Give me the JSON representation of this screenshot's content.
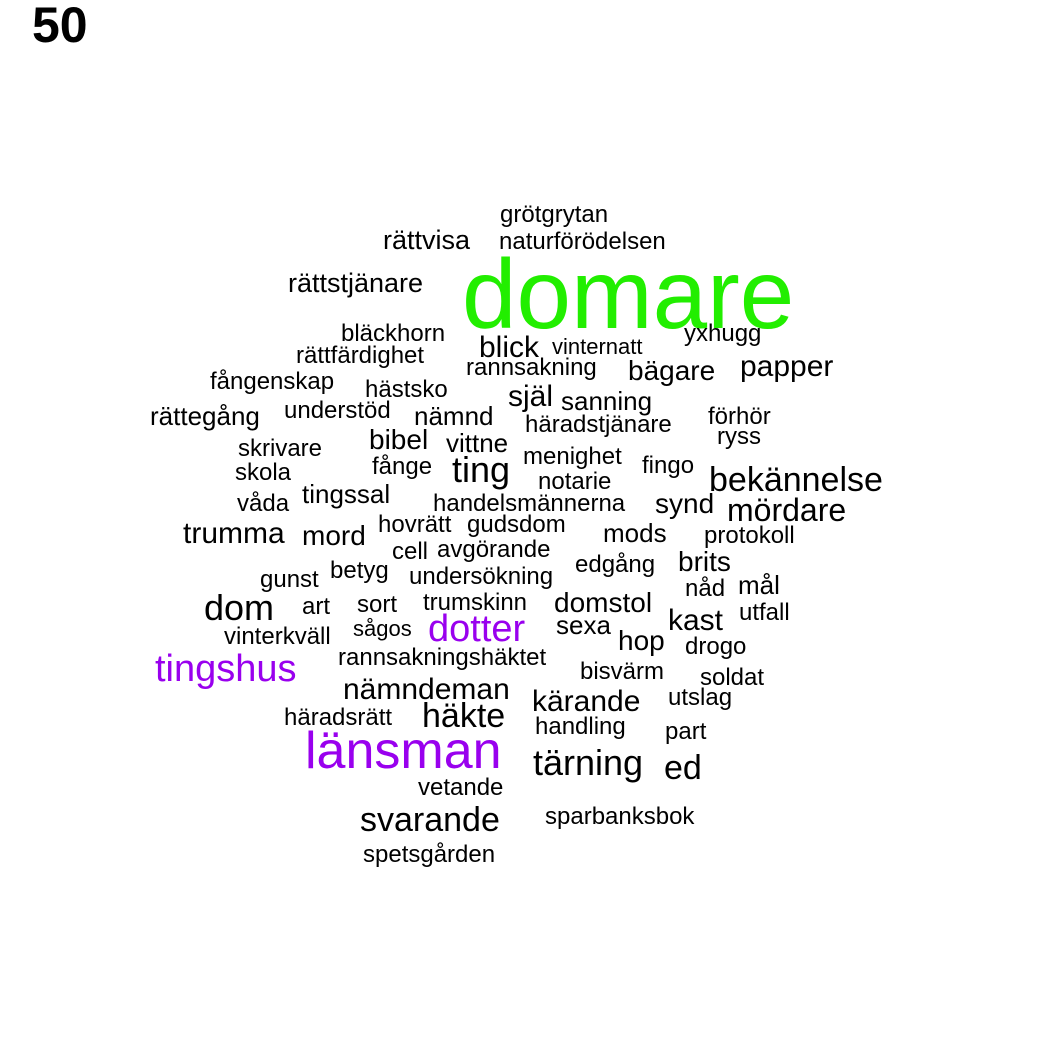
{
  "label": "50",
  "colors": {
    "highlight_green": "#22ee00",
    "highlight_purple": "#9900ee",
    "default": "#000000"
  },
  "words": [
    {
      "text": "domare",
      "color": "highlight_green",
      "tier": 1
    },
    {
      "text": "länsman",
      "color": "highlight_purple",
      "tier": 2
    },
    {
      "text": "tingshus",
      "color": "highlight_purple",
      "tier": 3
    },
    {
      "text": "dotter",
      "color": "highlight_purple",
      "tier": 3
    },
    {
      "text": "grötgrytan",
      "color": "default",
      "tier": 5
    },
    {
      "text": "rättvisa",
      "color": "default",
      "tier": 5
    },
    {
      "text": "naturförödelsen",
      "color": "default",
      "tier": 5
    },
    {
      "text": "rättstjänare",
      "color": "default",
      "tier": 4
    },
    {
      "text": "bläckhorn",
      "color": "default",
      "tier": 5
    },
    {
      "text": "yxhugg",
      "color": "default",
      "tier": 5
    },
    {
      "text": "blick",
      "color": "default",
      "tier": 4
    },
    {
      "text": "vinternatt",
      "color": "default",
      "tier": 5
    },
    {
      "text": "rättfärdighet",
      "color": "default",
      "tier": 5
    },
    {
      "text": "rannsakning",
      "color": "default",
      "tier": 5
    },
    {
      "text": "bägare",
      "color": "default",
      "tier": 4
    },
    {
      "text": "papper",
      "color": "default",
      "tier": 4
    },
    {
      "text": "fångenskap",
      "color": "default",
      "tier": 5
    },
    {
      "text": "hästsko",
      "color": "default",
      "tier": 5
    },
    {
      "text": "själ",
      "color": "default",
      "tier": 4
    },
    {
      "text": "sanning",
      "color": "default",
      "tier": 5
    },
    {
      "text": "rättegång",
      "color": "default",
      "tier": 4
    },
    {
      "text": "understöd",
      "color": "default",
      "tier": 5
    },
    {
      "text": "nämnd",
      "color": "default",
      "tier": 4
    },
    {
      "text": "häradstjänare",
      "color": "default",
      "tier": 5
    },
    {
      "text": "förhör",
      "color": "default",
      "tier": 5
    },
    {
      "text": "ryss",
      "color": "default",
      "tier": 5
    },
    {
      "text": "skrivare",
      "color": "default",
      "tier": 5
    },
    {
      "text": "bibel",
      "color": "default",
      "tier": 4
    },
    {
      "text": "vittne",
      "color": "default",
      "tier": 4
    },
    {
      "text": "menighet",
      "color": "default",
      "tier": 5
    },
    {
      "text": "skola",
      "color": "default",
      "tier": 5
    },
    {
      "text": "fånge",
      "color": "default",
      "tier": 5
    },
    {
      "text": "ting",
      "color": "default",
      "tier": 3
    },
    {
      "text": "notarie",
      "color": "default",
      "tier": 5
    },
    {
      "text": "fingo",
      "color": "default",
      "tier": 5
    },
    {
      "text": "bekännelse",
      "color": "default",
      "tier": 3
    },
    {
      "text": "våda",
      "color": "default",
      "tier": 5
    },
    {
      "text": "tingssal",
      "color": "default",
      "tier": 4
    },
    {
      "text": "handelsmännerna",
      "color": "default",
      "tier": 5
    },
    {
      "text": "synd",
      "color": "default",
      "tier": 4
    },
    {
      "text": "mördare",
      "color": "default",
      "tier": 3
    },
    {
      "text": "trumma",
      "color": "default",
      "tier": 4
    },
    {
      "text": "mord",
      "color": "default",
      "tier": 4
    },
    {
      "text": "hovrätt",
      "color": "default",
      "tier": 5
    },
    {
      "text": "gudsdom",
      "color": "default",
      "tier": 5
    },
    {
      "text": "mods",
      "color": "default",
      "tier": 4
    },
    {
      "text": "protokoll",
      "color": "default",
      "tier": 5
    },
    {
      "text": "cell",
      "color": "default",
      "tier": 5
    },
    {
      "text": "avgörande",
      "color": "default",
      "tier": 5
    },
    {
      "text": "edgång",
      "color": "default",
      "tier": 5
    },
    {
      "text": "brits",
      "color": "default",
      "tier": 4
    },
    {
      "text": "gunst",
      "color": "default",
      "tier": 5
    },
    {
      "text": "betyg",
      "color": "default",
      "tier": 5
    },
    {
      "text": "undersökning",
      "color": "default",
      "tier": 5
    },
    {
      "text": "nåd",
      "color": "default",
      "tier": 5
    },
    {
      "text": "mål",
      "color": "default",
      "tier": 4
    },
    {
      "text": "dom",
      "color": "default",
      "tier": 3
    },
    {
      "text": "art",
      "color": "default",
      "tier": 5
    },
    {
      "text": "sort",
      "color": "default",
      "tier": 5
    },
    {
      "text": "trumskinn",
      "color": "default",
      "tier": 5
    },
    {
      "text": "domstol",
      "color": "default",
      "tier": 4
    },
    {
      "text": "utfall",
      "color": "default",
      "tier": 5
    },
    {
      "text": "kast",
      "color": "default",
      "tier": 4
    },
    {
      "text": "vinterkväll",
      "color": "default",
      "tier": 5
    },
    {
      "text": "sågos",
      "color": "default",
      "tier": 5
    },
    {
      "text": "sexa",
      "color": "default",
      "tier": 4
    },
    {
      "text": "hop",
      "color": "default",
      "tier": 4
    },
    {
      "text": "drogo",
      "color": "default",
      "tier": 5
    },
    {
      "text": "rannsakningshäktet",
      "color": "default",
      "tier": 5
    },
    {
      "text": "bisvärm",
      "color": "default",
      "tier": 5
    },
    {
      "text": "soldat",
      "color": "default",
      "tier": 5
    },
    {
      "text": "nämndeman",
      "color": "default",
      "tier": 4
    },
    {
      "text": "kärande",
      "color": "default",
      "tier": 4
    },
    {
      "text": "utslag",
      "color": "default",
      "tier": 5
    },
    {
      "text": "häradsrätt",
      "color": "default",
      "tier": 5
    },
    {
      "text": "häkte",
      "color": "default",
      "tier": 3
    },
    {
      "text": "handling",
      "color": "default",
      "tier": 5
    },
    {
      "text": "part",
      "color": "default",
      "tier": 5
    },
    {
      "text": "tärning",
      "color": "default",
      "tier": 3
    },
    {
      "text": "ed",
      "color": "default",
      "tier": 3
    },
    {
      "text": "vetande",
      "color": "default",
      "tier": 5
    },
    {
      "text": "svarande",
      "color": "default",
      "tier": 3
    },
    {
      "text": "sparbanksbok",
      "color": "default",
      "tier": 5
    },
    {
      "text": "spetsgården",
      "color": "default",
      "tier": 5
    }
  ]
}
